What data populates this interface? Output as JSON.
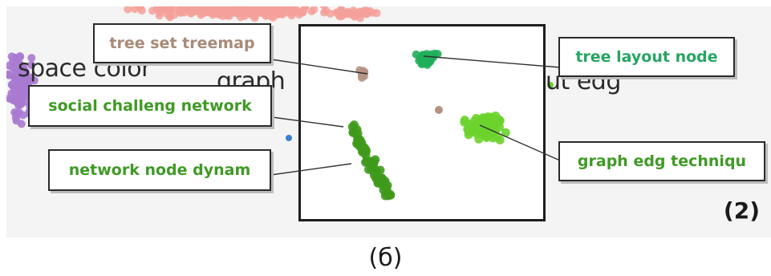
{
  "background_words": {
    "left": "space color",
    "middle": "graph",
    "right": "ut edg"
  },
  "labels": {
    "tree_set_treemap": "tree set treemap",
    "tree_layout_node": "tree layout node",
    "social_challeng_network": "social challeng network",
    "graph_edg_techniqu": "graph edg techniqu",
    "network_node_dynam": "network node dynam"
  },
  "panel_number": "(2)",
  "caption": "(б)",
  "colors": {
    "tan_cluster": "#b59383",
    "teal_cluster": "#1fae5a",
    "light_green_cluster": "#6bd32c",
    "dark_green_cluster": "#3f9a1c",
    "pink_background_cluster": "#f4a09a",
    "purple_background_cluster": "#a97ad0",
    "blue_dot": "#3b7fd0"
  }
}
